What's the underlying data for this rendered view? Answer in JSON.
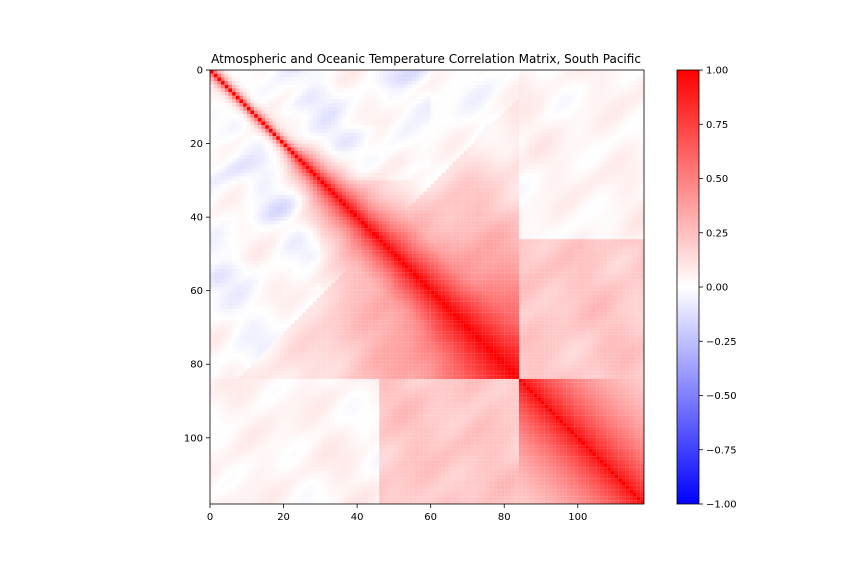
{
  "chart_data": {
    "type": "heatmap",
    "title": "Atmospheric and Oceanic Temperature Correlation Matrix, South Pacific",
    "xlabel": "",
    "ylabel": "",
    "matrix_size": 118,
    "block_boundary": 84,
    "x_ticks": [
      0,
      20,
      40,
      60,
      80,
      100
    ],
    "y_ticks": [
      0,
      20,
      40,
      60,
      80,
      100
    ],
    "xlim": [
      0,
      118
    ],
    "ylim": [
      118,
      0
    ],
    "colormap": "bwr",
    "colormap_colors": {
      "low": "#0000ff",
      "mid": "#ffffff",
      "high": "#ff0000"
    },
    "colorbar": {
      "vmin": -1.0,
      "vmax": 1.0,
      "ticks": [
        1.0,
        0.75,
        0.5,
        0.25,
        0.0,
        -0.25,
        -0.5,
        -0.75,
        -1.0
      ],
      "tick_labels": [
        "1.00",
        "0.75",
        "0.50",
        "0.25",
        "0.00",
        "−0.25",
        "−0.50",
        "−0.75",
        "−1.00"
      ]
    },
    "diagonal_value": 1.0,
    "blocks": [
      {
        "rows": [
          0,
          45
        ],
        "description": "weak band near diagonal",
        "typical_offdiag": 0.05
      },
      {
        "rows": [
          45,
          84
        ],
        "description": "strong positive block",
        "typical_offdiag": 0.75
      },
      {
        "rows": [
          84,
          118
        ],
        "description": "strong positive block",
        "typical_offdiag": 0.7
      }
    ],
    "cross_block_value": 0.15
  }
}
